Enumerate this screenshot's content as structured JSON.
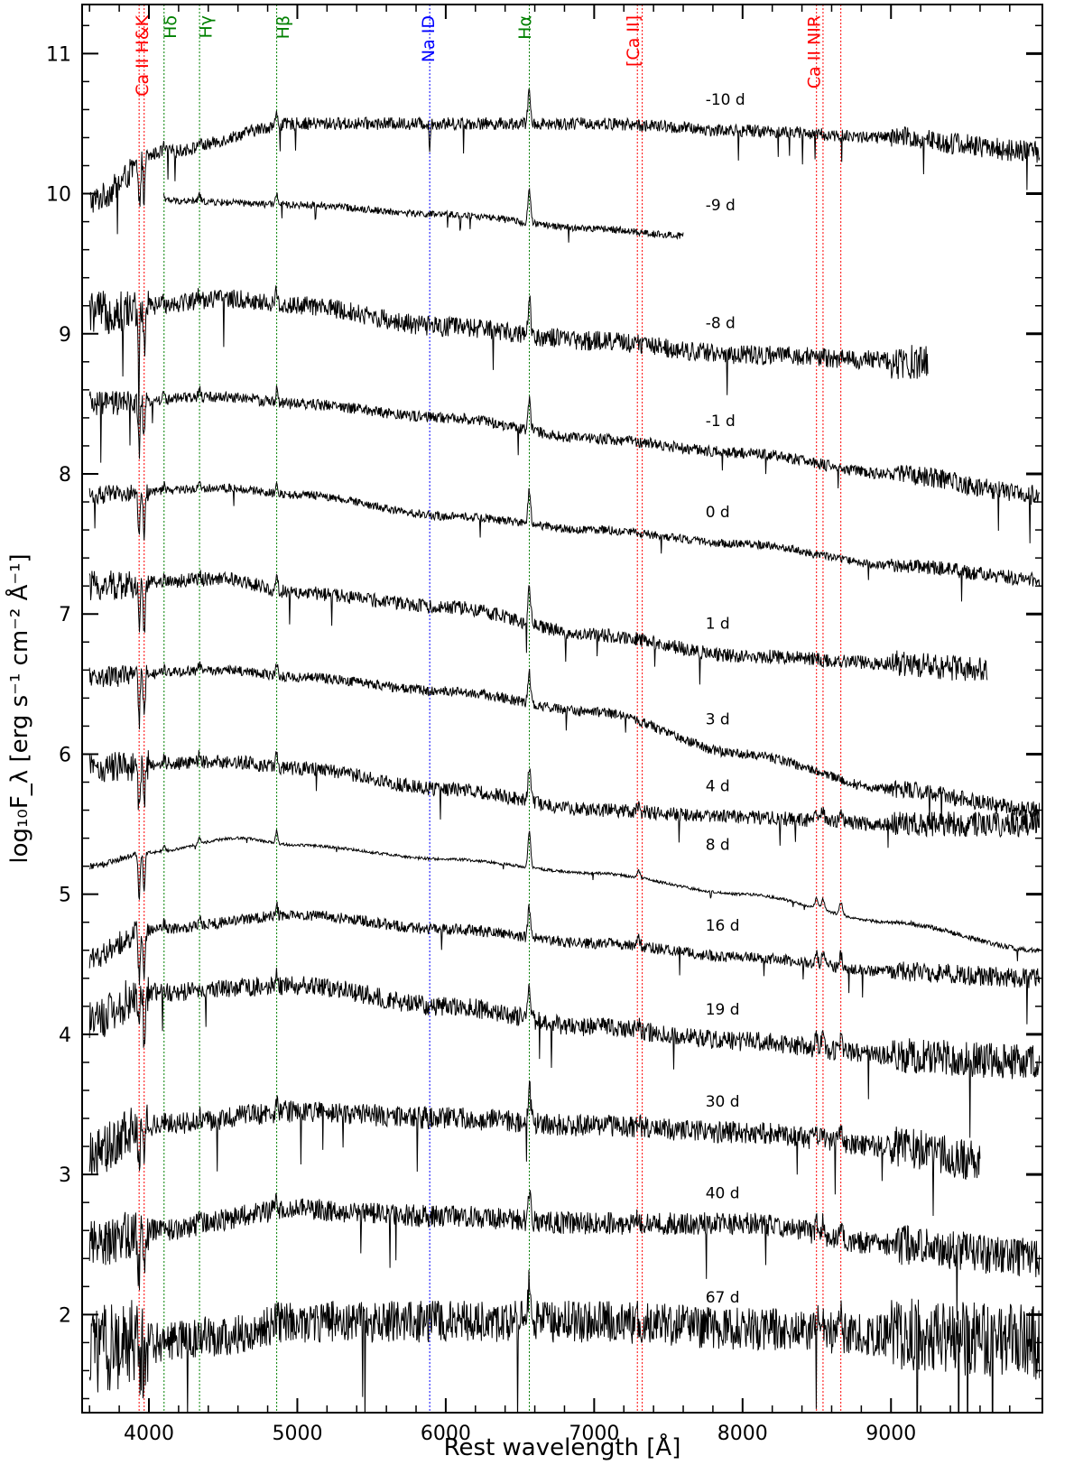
{
  "chart_data": {
    "type": "line",
    "xlabel": "Rest wavelength [Å]",
    "ylabel": "log₁₀F_λ [erg s⁻¹ cm⁻² Å⁻¹]",
    "xlim": [
      3550,
      10020
    ],
    "ylim": [
      1.3,
      11.35
    ],
    "x_ticks": [
      4000,
      5000,
      6000,
      7000,
      8000,
      9000
    ],
    "y_ticks": [
      2,
      3,
      4,
      5,
      6,
      7,
      8,
      9,
      10,
      11
    ],
    "grid": false,
    "line_markers": [
      {
        "label": "Ca II H&K",
        "color": "#ff0000",
        "wavelengths": [
          3934,
          3968
        ]
      },
      {
        "label": "Hδ",
        "color": "#008000",
        "wavelengths": [
          4102
        ]
      },
      {
        "label": "Hγ",
        "color": "#008000",
        "wavelengths": [
          4341
        ]
      },
      {
        "label": "Hβ",
        "color": "#008000",
        "wavelengths": [
          4861
        ]
      },
      {
        "label": "Na ID",
        "color": "#0000ff",
        "wavelengths": [
          5892
        ]
      },
      {
        "label": "Hα",
        "color": "#008000",
        "wavelengths": [
          6563
        ]
      },
      {
        "label": "[Ca II]",
        "color": "#ff0000",
        "wavelengths": [
          7291,
          7324
        ]
      },
      {
        "label": "Ca II NIR",
        "color": "#ff0000",
        "wavelengths": [
          8498,
          8542,
          8662
        ]
      }
    ],
    "series": [
      {
        "name": "-10 d",
        "x_range": [
          3600,
          10000
        ],
        "noise": 0.045,
        "anchors": [
          [
            3600,
            9.95
          ],
          [
            4100,
            10.3
          ],
          [
            5000,
            10.5
          ],
          [
            6000,
            10.5
          ],
          [
            7000,
            10.5
          ],
          [
            8000,
            10.45
          ],
          [
            9000,
            10.4
          ],
          [
            10000,
            10.3
          ]
        ]
      },
      {
        "name": "-9 d",
        "x_range": [
          4100,
          7600
        ],
        "noise": 0.025,
        "anchors": [
          [
            4100,
            9.95
          ],
          [
            5000,
            9.92
          ],
          [
            6000,
            9.85
          ],
          [
            7000,
            9.75
          ],
          [
            7600,
            9.7
          ]
        ]
      },
      {
        "name": "-8 d",
        "x_range": [
          3600,
          9250
        ],
        "noise": 0.07,
        "anchors": [
          [
            3600,
            9.15
          ],
          [
            4500,
            9.25
          ],
          [
            5000,
            9.2
          ],
          [
            6000,
            9.05
          ],
          [
            7000,
            8.95
          ],
          [
            8000,
            8.85
          ],
          [
            9250,
            8.8
          ]
        ]
      },
      {
        "name": "-1 d",
        "x_range": [
          3600,
          10000
        ],
        "noise": 0.04,
        "anchors": [
          [
            3600,
            8.5
          ],
          [
            4500,
            8.55
          ],
          [
            5000,
            8.5
          ],
          [
            6000,
            8.4
          ],
          [
            7000,
            8.25
          ],
          [
            8000,
            8.15
          ],
          [
            9000,
            8.0
          ],
          [
            10000,
            7.85
          ]
        ]
      },
      {
        "name": "0 d",
        "x_range": [
          3600,
          10000
        ],
        "noise": 0.03,
        "anchors": [
          [
            3600,
            7.85
          ],
          [
            4500,
            7.9
          ],
          [
            5000,
            7.85
          ],
          [
            6000,
            7.7
          ],
          [
            7000,
            7.6
          ],
          [
            8000,
            7.5
          ],
          [
            9000,
            7.35
          ],
          [
            10000,
            7.25
          ]
        ]
      },
      {
        "name": "1 d",
        "x_range": [
          3600,
          9650
        ],
        "noise": 0.05,
        "anchors": [
          [
            3600,
            7.2
          ],
          [
            4500,
            7.25
          ],
          [
            5000,
            7.15
          ],
          [
            6000,
            7.05
          ],
          [
            7000,
            6.85
          ],
          [
            8000,
            6.7
          ],
          [
            9000,
            6.65
          ],
          [
            9650,
            6.6
          ]
        ]
      },
      {
        "name": "3 d",
        "x_range": [
          3600,
          10000
        ],
        "noise": 0.035,
        "anchors": [
          [
            3600,
            6.55
          ],
          [
            4500,
            6.6
          ],
          [
            5000,
            6.55
          ],
          [
            6000,
            6.45
          ],
          [
            7000,
            6.3
          ],
          [
            8000,
            6.0
          ],
          [
            9000,
            5.75
          ],
          [
            10000,
            5.6
          ]
        ]
      },
      {
        "name": "4 d",
        "x_range": [
          3600,
          10000
        ],
        "noise": 0.05,
        "anchors": [
          [
            3600,
            5.9
          ],
          [
            4500,
            5.95
          ],
          [
            5000,
            5.9
          ],
          [
            6000,
            5.75
          ],
          [
            7000,
            5.6
          ],
          [
            8000,
            5.55
          ],
          [
            9000,
            5.5
          ],
          [
            10000,
            5.5
          ]
        ]
      },
      {
        "name": "8 d",
        "x_range": [
          3600,
          10000
        ],
        "noise": 0.01,
        "anchors": [
          [
            3600,
            5.2
          ],
          [
            4000,
            5.3
          ],
          [
            4600,
            5.4
          ],
          [
            5000,
            5.35
          ],
          [
            6000,
            5.25
          ],
          [
            7000,
            5.15
          ],
          [
            8000,
            5.0
          ],
          [
            9000,
            4.8
          ],
          [
            10000,
            4.6
          ]
        ]
      },
      {
        "name": "16 d",
        "x_range": [
          3600,
          10000
        ],
        "noise": 0.04,
        "anchors": [
          [
            3600,
            4.55
          ],
          [
            4000,
            4.75
          ],
          [
            5000,
            4.85
          ],
          [
            6000,
            4.75
          ],
          [
            7000,
            4.65
          ],
          [
            8000,
            4.55
          ],
          [
            9000,
            4.45
          ],
          [
            10000,
            4.4
          ]
        ]
      },
      {
        "name": "19 d",
        "x_range": [
          3600,
          10000
        ],
        "noise": 0.07,
        "anchors": [
          [
            3600,
            4.1
          ],
          [
            4000,
            4.3
          ],
          [
            5000,
            4.35
          ],
          [
            6000,
            4.2
          ],
          [
            7000,
            4.05
          ],
          [
            8000,
            3.95
          ],
          [
            9000,
            3.85
          ],
          [
            10000,
            3.8
          ]
        ]
      },
      {
        "name": "30 d",
        "x_range": [
          3600,
          9600
        ],
        "noise": 0.08,
        "anchors": [
          [
            3600,
            3.15
          ],
          [
            4000,
            3.35
          ],
          [
            5000,
            3.45
          ],
          [
            6000,
            3.4
          ],
          [
            7000,
            3.35
          ],
          [
            8000,
            3.3
          ],
          [
            9000,
            3.2
          ],
          [
            9600,
            3.1
          ]
        ]
      },
      {
        "name": "40 d",
        "x_range": [
          3600,
          10000
        ],
        "noise": 0.08,
        "anchors": [
          [
            3600,
            2.5
          ],
          [
            4000,
            2.6
          ],
          [
            5000,
            2.75
          ],
          [
            6000,
            2.7
          ],
          [
            7000,
            2.65
          ],
          [
            8000,
            2.65
          ],
          [
            9000,
            2.5
          ],
          [
            10000,
            2.4
          ]
        ]
      },
      {
        "name": "67 d",
        "x_range": [
          3600,
          10000
        ],
        "noise": 0.15,
        "anchors": [
          [
            3600,
            1.75
          ],
          [
            4500,
            1.85
          ],
          [
            5000,
            1.95
          ],
          [
            6000,
            1.95
          ],
          [
            7000,
            1.95
          ],
          [
            8000,
            1.9
          ],
          [
            9000,
            1.85
          ],
          [
            10000,
            1.8
          ]
        ]
      }
    ]
  }
}
